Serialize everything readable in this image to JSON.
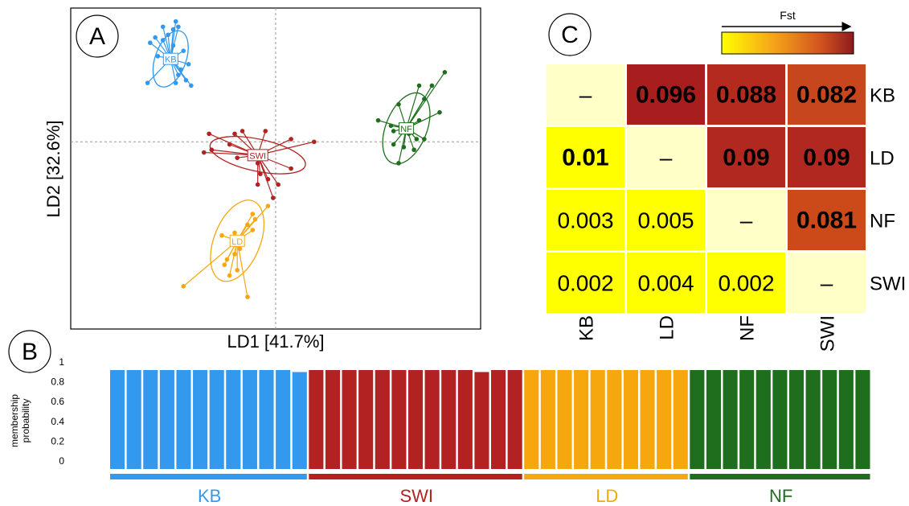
{
  "panels": {
    "a": "A",
    "b": "B",
    "c": "C"
  },
  "colors": {
    "KB": "#3399ee",
    "SWI": "#b22222",
    "LD": "#f5a70d",
    "NF": "#1e6e1e"
  },
  "chart_data": [
    {
      "type": "scatter",
      "panel": "A",
      "title": "",
      "xlabel": "LD1 [41.7%]",
      "ylabel": "LD2 [32.6%]",
      "xlim": [
        -8,
        8
      ],
      "ylim": [
        -7,
        5
      ],
      "grid": false,
      "reference_lines": {
        "x": 0,
        "y": 0
      },
      "series": [
        {
          "name": "KB",
          "centroid": [
            -4.1,
            3.1
          ],
          "ellipse": {
            "rx": 0.6,
            "ry": 1.1,
            "tilt_deg": 20
          },
          "points": [
            [
              -3.9,
              4.5
            ],
            [
              -3.8,
              4.3
            ],
            [
              -4.0,
              4.2
            ],
            [
              -4.4,
              4.3
            ],
            [
              -4.2,
              4.0
            ],
            [
              -4.7,
              3.9
            ],
            [
              -4.4,
              3.8
            ],
            [
              -4.9,
              3.7
            ],
            [
              -4.0,
              3.6
            ],
            [
              -3.6,
              3.4
            ],
            [
              -4.6,
              3.2
            ],
            [
              -3.4,
              2.9
            ],
            [
              -3.7,
              2.7
            ],
            [
              -3.8,
              2.5
            ],
            [
              -3.5,
              2.3
            ],
            [
              -5.0,
              2.2
            ],
            [
              -3.3,
              2.1
            ],
            [
              -3.9,
              2.2
            ]
          ]
        },
        {
          "name": "SWI",
          "centroid": [
            -0.7,
            -0.5
          ],
          "ellipse": {
            "rx": 1.9,
            "ry": 0.6,
            "tilt_deg": 12
          },
          "points": [
            [
              -2.6,
              0.3
            ],
            [
              -1.6,
              0.3
            ],
            [
              -1.3,
              0.4
            ],
            [
              -0.4,
              0.4
            ],
            [
              0.6,
              0.1
            ],
            [
              1.5,
              0.0
            ],
            [
              -1.8,
              -0.1
            ],
            [
              -2.5,
              -0.3
            ],
            [
              -2.8,
              -0.4
            ],
            [
              -1.5,
              -0.6
            ],
            [
              -0.7,
              -0.8
            ],
            [
              0.6,
              -1.0
            ],
            [
              -0.6,
              -1.2
            ],
            [
              -0.3,
              -1.4
            ],
            [
              -0.7,
              -1.6
            ],
            [
              0.1,
              -1.6
            ],
            [
              -0.1,
              -2.1
            ]
          ]
        },
        {
          "name": "LD",
          "centroid": [
            -1.5,
            -3.7
          ],
          "ellipse": {
            "rx": 0.9,
            "ry": 1.6,
            "tilt_deg": 22
          },
          "points": [
            [
              -0.3,
              -2.4
            ],
            [
              -0.9,
              -2.7
            ],
            [
              -0.8,
              -2.9
            ],
            [
              -1.1,
              -3.1
            ],
            [
              -0.9,
              -3.3
            ],
            [
              -1.6,
              -3.4
            ],
            [
              -2.1,
              -3.5
            ],
            [
              -1.3,
              -3.7
            ],
            [
              -1.4,
              -4.0
            ],
            [
              -1.6,
              -4.2
            ],
            [
              -1.9,
              -4.4
            ],
            [
              -2.0,
              -4.6
            ],
            [
              -1.5,
              -4.8
            ],
            [
              -1.8,
              -5.0
            ],
            [
              -3.6,
              -5.4
            ],
            [
              -1.1,
              -5.8
            ]
          ]
        },
        {
          "name": "NF",
          "centroid": [
            5.1,
            0.5
          ],
          "ellipse": {
            "rx": 0.8,
            "ry": 1.4,
            "tilt_deg": 22
          },
          "points": [
            [
              6.6,
              2.6
            ],
            [
              6.1,
              2.1
            ],
            [
              5.6,
              2.1
            ],
            [
              5.8,
              1.6
            ],
            [
              4.8,
              1.4
            ],
            [
              6.4,
              1.1
            ],
            [
              4.0,
              0.8
            ],
            [
              5.6,
              0.8
            ],
            [
              4.5,
              0.6
            ],
            [
              4.6,
              0.4
            ],
            [
              5.2,
              0.3
            ],
            [
              5.8,
              0.1
            ],
            [
              5.5,
              0.1
            ],
            [
              4.6,
              -0.1
            ],
            [
              5.0,
              -0.2
            ],
            [
              5.4,
              -0.3
            ],
            [
              4.8,
              -0.8
            ]
          ]
        }
      ]
    },
    {
      "type": "bar",
      "panel": "B",
      "ylabel_line1": "membership",
      "ylabel_line2": "probability",
      "ylim": [
        0,
        1
      ],
      "yticks": [
        "0",
        "0.2",
        "0.4",
        "0.6",
        "0.8",
        "1"
      ],
      "stacked": true,
      "groups": [
        {
          "name": "KB",
          "count": 12
        },
        {
          "name": "SWI",
          "count": 13
        },
        {
          "name": "LD",
          "count": 10
        },
        {
          "name": "NF",
          "count": 11
        }
      ],
      "membership": {
        "KB": [
          1,
          1,
          1,
          1,
          1,
          1,
          1,
          1,
          1,
          1,
          1,
          0.98
        ],
        "SWI": [
          1,
          1,
          1,
          1,
          1,
          1,
          1,
          1,
          1,
          1,
          0.98,
          1,
          1
        ],
        "LD": [
          1,
          1,
          1,
          1,
          1,
          1,
          1,
          1,
          1,
          1
        ],
        "NF": [
          1,
          1,
          1,
          1,
          1,
          1,
          1,
          1,
          1,
          1,
          1
        ]
      }
    },
    {
      "type": "heatmap",
      "panel": "C",
      "legend_title": "Fst",
      "colorscale": [
        "#ffff00",
        "#f5a21a",
        "#d2541e",
        "#a01c1e"
      ],
      "rows": [
        "KB",
        "LD",
        "NF",
        "SWI"
      ],
      "cols": [
        "KB",
        "LD",
        "NF",
        "SWI"
      ],
      "cells": [
        [
          "–",
          "0.096",
          "0.088",
          "0.082"
        ],
        [
          "0.01",
          "–",
          "0.09",
          "0.09"
        ],
        [
          "0.003",
          "0.005",
          "–",
          "0.081"
        ],
        [
          "0.002",
          "0.004",
          "0.002",
          "–"
        ]
      ],
      "bold": [
        [
          false,
          true,
          true,
          true
        ],
        [
          true,
          false,
          true,
          true
        ],
        [
          false,
          false,
          false,
          true
        ],
        [
          false,
          false,
          false,
          false
        ]
      ],
      "fill": [
        [
          "#ffffc8",
          "#a81e1e",
          "#b42a1e",
          "#c8461e"
        ],
        [
          "#ffff00",
          "#ffffc8",
          "#b02820",
          "#b02820"
        ],
        [
          "#ffff00",
          "#ffff00",
          "#ffffc8",
          "#cc4a1a"
        ],
        [
          "#ffff00",
          "#ffff00",
          "#ffff00",
          "#ffffc8"
        ]
      ]
    }
  ]
}
